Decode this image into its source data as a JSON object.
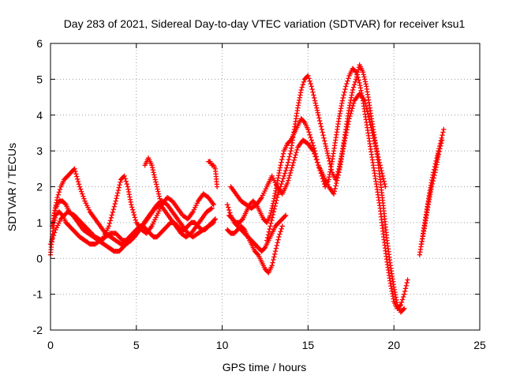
{
  "chart_data": {
    "type": "scatter",
    "title": "Day 283 of 2021, Sidereal Day-to-day VTEC variation (SDTVAR) for receiver ksu1",
    "xlabel": "GPS time / hours",
    "ylabel": "SDTVAR / TECUs",
    "xlim": [
      0,
      25
    ],
    "ylim": [
      -2,
      6
    ],
    "xticks": [
      "0",
      "5",
      "10",
      "15",
      "20",
      "25"
    ],
    "yticks": [
      "-2",
      "-1",
      "0",
      "1",
      "2",
      "3",
      "4",
      "5",
      "6"
    ],
    "grid": true,
    "marker": "+",
    "color": "#ff0000",
    "series": [
      {
        "x": [
          0.0,
          0.1,
          0.2,
          0.3,
          0.5,
          0.7,
          0.9,
          1.1,
          1.3,
          1.5,
          1.7,
          2.0,
          2.3,
          2.6,
          2.9,
          3.2,
          3.5,
          3.8,
          4.0,
          4.2,
          4.4,
          4.6,
          4.8,
          5.0,
          5.2,
          5.4,
          5.6,
          5.8,
          6.0,
          6.2,
          6.4,
          6.6,
          6.8,
          7.0,
          7.2,
          7.4,
          7.6,
          7.8,
          8.0,
          8.2,
          8.4,
          8.6,
          8.8,
          9.0,
          9.2,
          9.4,
          9.6
        ],
        "y": [
          0.1,
          0.6,
          1.0,
          1.2,
          1.3,
          1.2,
          1.0,
          0.9,
          0.8,
          0.7,
          0.6,
          0.5,
          0.4,
          0.4,
          0.5,
          0.6,
          0.7,
          0.7,
          0.6,
          0.5,
          0.5,
          0.6,
          0.7,
          0.8,
          0.9,
          0.9,
          0.8,
          0.7,
          0.6,
          0.6,
          0.7,
          0.8,
          0.9,
          1.0,
          1.0,
          0.9,
          0.8,
          0.8,
          0.9,
          1.0,
          1.0,
          0.9,
          0.8,
          0.8,
          0.9,
          1.0,
          1.1
        ]
      },
      {
        "x": [
          0.1,
          0.3,
          0.5,
          0.7,
          0.9,
          1.1,
          1.3,
          1.6,
          1.9,
          2.2,
          2.5,
          2.8,
          3.1,
          3.4,
          3.7,
          4.0,
          4.2,
          4.4,
          4.6,
          4.9,
          5.2,
          5.5,
          5.8,
          6.1,
          6.4,
          6.7,
          7.0,
          7.3,
          7.6,
          7.9,
          8.2,
          8.5,
          8.8,
          9.1,
          9.4
        ],
        "y": [
          0.9,
          1.4,
          1.6,
          1.6,
          1.5,
          1.3,
          1.2,
          1.0,
          0.8,
          0.7,
          0.6,
          0.5,
          0.4,
          0.3,
          0.2,
          0.2,
          0.3,
          0.4,
          0.5,
          0.6,
          0.8,
          1.0,
          1.2,
          1.4,
          1.5,
          1.3,
          1.1,
          0.9,
          0.7,
          0.6,
          0.7,
          0.9,
          1.1,
          1.3,
          1.4
        ]
      },
      {
        "x": [
          0.2,
          0.4,
          0.6,
          0.8,
          1.0,
          1.2,
          1.4,
          1.7,
          2.0,
          2.3,
          2.6,
          2.9,
          3.2,
          3.5,
          3.8,
          4.1,
          4.4,
          4.7,
          5.0,
          5.3,
          5.6,
          5.9,
          6.2,
          6.5,
          6.8,
          7.1,
          7.4,
          7.7,
          8.0,
          8.3,
          8.6,
          8.9,
          9.2,
          9.5
        ],
        "y": [
          1.2,
          1.7,
          2.0,
          2.2,
          2.3,
          2.4,
          2.5,
          2.0,
          1.6,
          1.3,
          1.1,
          0.9,
          0.7,
          0.6,
          0.5,
          0.4,
          0.4,
          0.5,
          0.7,
          0.9,
          1.1,
          1.3,
          1.5,
          1.6,
          1.5,
          1.3,
          1.1,
          0.9,
          0.7,
          0.6,
          0.7,
          0.8,
          0.9,
          1.0
        ]
      },
      {
        "x": [
          0.0,
          0.3,
          0.6,
          1.0,
          1.4,
          1.8,
          2.2,
          2.6,
          3.0,
          3.4,
          3.8,
          4.1,
          4.3,
          4.5,
          4.7,
          5.0,
          5.3,
          5.6,
          5.9,
          6.2,
          6.5,
          6.8,
          7.1,
          7.4,
          7.7,
          8.0,
          8.3,
          8.6,
          8.9,
          9.2,
          9.5
        ],
        "y": [
          0.4,
          0.8,
          1.1,
          1.3,
          1.2,
          1.0,
          0.8,
          0.6,
          0.5,
          0.9,
          1.6,
          2.2,
          2.3,
          2.0,
          1.5,
          1.0,
          0.8,
          0.7,
          0.9,
          1.2,
          1.5,
          1.7,
          1.6,
          1.4,
          1.2,
          1.1,
          1.3,
          1.6,
          1.8,
          1.7,
          1.5
        ]
      },
      {
        "x": [
          5.5,
          5.6,
          5.7,
          5.8,
          5.9,
          6.0,
          6.1,
          6.2,
          6.3,
          6.4,
          6.5
        ],
        "y": [
          2.6,
          2.7,
          2.8,
          2.7,
          2.6,
          2.4,
          2.2,
          2.0,
          1.8,
          1.6,
          1.5
        ]
      },
      {
        "x": [
          9.2,
          9.3,
          9.4,
          9.5,
          9.6,
          9.7
        ],
        "y": [
          2.7,
          2.7,
          2.6,
          2.6,
          2.5,
          2.0
        ]
      },
      {
        "x": [
          10.3,
          10.5,
          10.7,
          10.9,
          11.1,
          11.3,
          11.5,
          11.7,
          11.9,
          12.1,
          12.3,
          12.5,
          12.7,
          12.9,
          13.1,
          13.3,
          13.5,
          13.7
        ],
        "y": [
          1.5,
          1.2,
          1.0,
          0.9,
          0.8,
          0.7,
          0.6,
          0.5,
          0.4,
          0.3,
          0.2,
          0.3,
          0.5,
          0.7,
          0.9,
          1.0,
          1.1,
          1.2
        ]
      },
      {
        "x": [
          10.3,
          10.5,
          10.7,
          10.9,
          11.1,
          11.3,
          11.5,
          11.7,
          11.9,
          12.1,
          12.3,
          12.5,
          12.7,
          12.9,
          13.1,
          13.3,
          13.5
        ],
        "y": [
          0.8,
          0.7,
          0.7,
          0.8,
          0.9,
          0.8,
          0.6,
          0.4,
          0.2,
          0.1,
          -0.1,
          -0.3,
          -0.4,
          -0.2,
          0.2,
          0.6,
          0.9
        ]
      },
      {
        "x": [
          10.4,
          10.6,
          10.8,
          11.0,
          11.2,
          11.4,
          11.6,
          11.8,
          12.0,
          12.2,
          12.4,
          12.6,
          12.8,
          13.0,
          13.2,
          13.4,
          13.6,
          13.8,
          14.0,
          14.2,
          14.4,
          14.6,
          14.8,
          15.0,
          15.2,
          15.4,
          15.6,
          15.8,
          16.0,
          16.2,
          16.4,
          16.6,
          16.8,
          17.0,
          17.2,
          17.4,
          17.6,
          17.8,
          18.0,
          18.2,
          18.4,
          18.6,
          18.8,
          19.0,
          19.2,
          19.4,
          19.6,
          19.8,
          20.0,
          20.2,
          20.4,
          20.6,
          20.8
        ],
        "y": [
          1.2,
          1.1,
          1.0,
          1.0,
          1.1,
          1.3,
          1.5,
          1.6,
          1.5,
          1.3,
          1.1,
          1.0,
          1.2,
          1.6,
          2.1,
          2.6,
          3.0,
          3.2,
          3.3,
          3.5,
          3.7,
          3.9,
          3.8,
          3.6,
          3.3,
          3.0,
          2.6,
          2.3,
          2.0,
          2.2,
          2.7,
          3.3,
          3.9,
          4.4,
          4.8,
          5.1,
          5.3,
          5.2,
          4.9,
          4.4,
          3.8,
          3.2,
          2.6,
          2.0,
          1.4,
          0.6,
          -0.1,
          -0.7,
          -1.2,
          -1.4,
          -1.3,
          -1.0,
          -0.6
        ]
      },
      {
        "x": [
          12.6,
          12.8,
          13.0,
          13.2,
          13.4,
          13.6,
          13.8,
          14.0,
          14.2,
          14.4,
          14.6,
          14.8,
          15.0,
          15.2,
          15.4,
          15.6,
          15.8,
          16.0,
          16.2,
          16.4,
          16.6,
          16.8,
          17.0,
          17.2,
          17.4,
          17.6,
          17.8,
          18.0,
          18.2,
          18.4,
          18.6,
          18.8,
          19.0,
          19.2,
          19.4,
          19.6,
          19.8,
          20.0,
          20.2,
          20.4,
          20.6
        ],
        "y": [
          0.5,
          0.9,
          1.3,
          1.7,
          2.0,
          2.3,
          2.6,
          3.0,
          3.6,
          4.2,
          4.7,
          5.0,
          5.1,
          4.8,
          4.4,
          4.0,
          3.6,
          3.2,
          2.8,
          2.4,
          2.2,
          2.5,
          3.0,
          3.6,
          4.2,
          4.7,
          5.0,
          5.4,
          5.2,
          4.8,
          4.2,
          3.6,
          3.0,
          2.2,
          1.4,
          0.5,
          -0.2,
          -0.8,
          -1.3,
          -1.5,
          -1.4
        ]
      },
      {
        "x": [
          10.5,
          10.8,
          11.1,
          11.4,
          11.7,
          12.0,
          12.3,
          12.6,
          12.9,
          13.2,
          13.5,
          13.8,
          14.1,
          14.4,
          14.7,
          15.0,
          15.3,
          15.6,
          15.9,
          16.2,
          16.5,
          16.8,
          17.1,
          17.4,
          17.7,
          18.0,
          18.3,
          18.6,
          18.9,
          19.2,
          19.5
        ],
        "y": [
          2.0,
          1.8,
          1.6,
          1.5,
          1.4,
          1.5,
          1.7,
          2.0,
          2.3,
          2.0,
          1.8,
          2.1,
          2.6,
          3.1,
          3.3,
          3.2,
          3.0,
          2.6,
          2.3,
          2.0,
          1.8,
          2.4,
          3.2,
          3.9,
          4.4,
          4.6,
          4.4,
          3.8,
          3.2,
          2.6,
          2.0
        ]
      },
      {
        "x": [
          21.5,
          21.7,
          21.9,
          22.1,
          22.3,
          22.5,
          22.7,
          22.9
        ],
        "y": [
          0.1,
          0.7,
          1.3,
          1.9,
          2.4,
          2.8,
          3.2,
          3.6
        ]
      },
      {
        "x": [
          21.6,
          21.8,
          22.0,
          22.2,
          22.4,
          22.6,
          22.8
        ],
        "y": [
          0.4,
          0.9,
          1.5,
          2.0,
          2.4,
          2.9,
          3.3
        ]
      }
    ]
  }
}
